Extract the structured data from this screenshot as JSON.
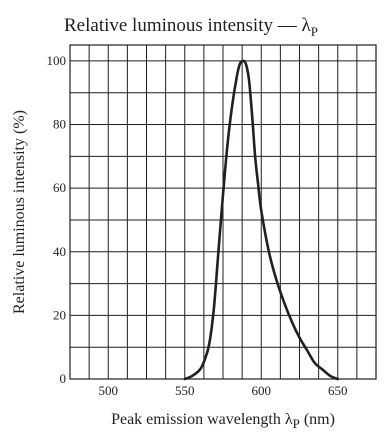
{
  "chart_data": {
    "type": "line",
    "title": "Relative luminous intensity — λ",
    "title_subscript": "P",
    "xlabel": "Peak emission wavelength λ",
    "xlabel_subscript": "P",
    "xlabel_unit": "(nm)",
    "ylabel": "Relative luminous intensity  (%)",
    "xlim": [
      475,
      675
    ],
    "ylim": [
      0,
      105
    ],
    "x_ticks": [
      500,
      550,
      600,
      650
    ],
    "y_ticks": [
      0,
      20,
      40,
      60,
      80,
      100
    ],
    "grid": true,
    "series": [
      {
        "x": [
          550,
          555,
          560,
          563,
          566,
          569,
          572,
          575,
          578,
          581,
          584,
          586,
          588,
          590,
          592,
          594,
          596,
          598,
          600,
          605,
          610,
          615,
          620,
          625,
          630,
          635,
          640,
          645,
          650
        ],
        "y": [
          0,
          1,
          3,
          6,
          11,
          22,
          40,
          58,
          74,
          86,
          95,
          99,
          100,
          99,
          94,
          83,
          70,
          61,
          53,
          40,
          31,
          24,
          18,
          13,
          9,
          5,
          3,
          1,
          0
        ]
      }
    ]
  }
}
